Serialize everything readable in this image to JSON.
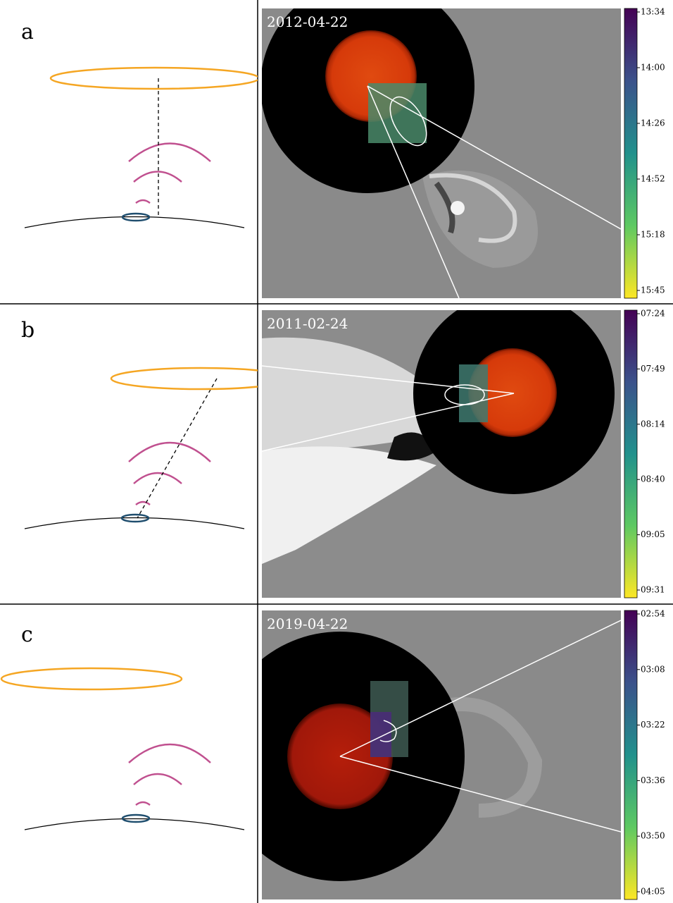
{
  "panels": [
    {
      "label": "a",
      "date": "2012-04-22",
      "colorbar_ticks": [
        "13:34",
        "14:00",
        "14:26",
        "14:52",
        "15:18",
        "15:45"
      ]
    },
    {
      "label": "b",
      "date": "2011-02-24",
      "colorbar_ticks": [
        "07:24",
        "07:49",
        "08:14",
        "08:40",
        "09:05",
        "09:31"
      ]
    },
    {
      "label": "c",
      "date": "2019-04-22",
      "colorbar_ticks": [
        "02:54",
        "03:08",
        "03:22",
        "03:36",
        "03:50",
        "04:05"
      ]
    }
  ]
}
